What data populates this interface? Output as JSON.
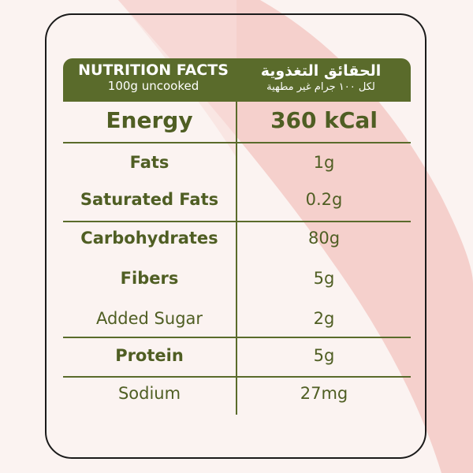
{
  "header": {
    "title_en": "NUTRITION FACTS",
    "subtitle_en": "100g uncooked",
    "title_ar": "الحقائق التغذوية",
    "subtitle_ar": "لكل ١٠٠ جرام غير مطهية"
  },
  "energy": {
    "label": "Energy",
    "value": "360 kCal"
  },
  "rows": [
    {
      "label": "Fats",
      "value": "1g"
    },
    {
      "label": "Saturated Fats",
      "value": "0.2g"
    },
    {
      "label": "Carbohydrates",
      "value": "80g"
    },
    {
      "label": "Fibers",
      "value": "5g"
    },
    {
      "label": "Added Sugar",
      "value": "2g"
    },
    {
      "label": "Protein",
      "value": "5g"
    },
    {
      "label": "Sodium",
      "value": "27mg"
    }
  ],
  "colors": {
    "brand": "#5a6b2b",
    "text": "#4f5e23",
    "background": "#fbf3f1",
    "stripe": "#f2c4c0"
  }
}
